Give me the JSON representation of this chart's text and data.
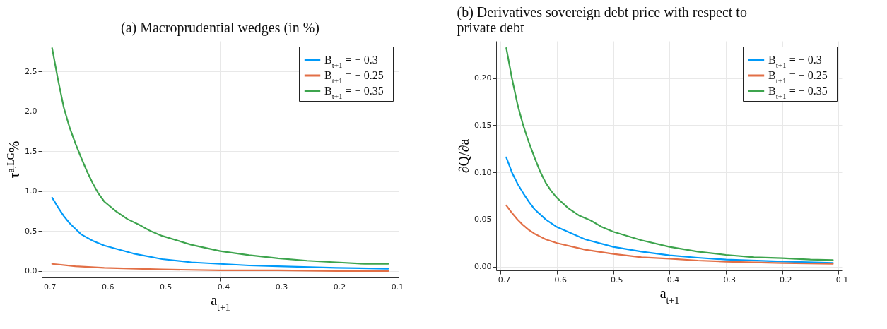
{
  "chart_data": [
    {
      "type": "line",
      "title": "(a) Macroprudential wedges (in %)",
      "xlabel": "a$_{t+1}$",
      "ylabel": "τ$^{a,LG}$%",
      "xlim": [
        -0.708,
        -0.092
      ],
      "ylim": [
        -0.08,
        2.88
      ],
      "xticks": [
        {
          "value": -0.7,
          "label": "−0.7"
        },
        {
          "value": -0.6,
          "label": "−0.6"
        },
        {
          "value": -0.5,
          "label": "−0.5"
        },
        {
          "value": -0.4,
          "label": "−0.4"
        },
        {
          "value": -0.3,
          "label": "−0.3"
        },
        {
          "value": -0.2,
          "label": "−0.2"
        },
        {
          "value": -0.1,
          "label": "−0.1"
        }
      ],
      "yticks": [
        {
          "value": 0,
          "label": "0.0"
        },
        0.5,
        {
          "value": 1,
          "label": "1.0"
        },
        1.5,
        {
          "value": 2,
          "label": "2.0"
        },
        2.5
      ],
      "grid": true,
      "legend": "top right",
      "line_style": "solid",
      "series": [
        {
          "name": "B$_{t+1}$ = − 0.3",
          "color": "#009af9",
          "x": [
            -0.69,
            -0.68,
            -0.67,
            -0.66,
            -0.65,
            -0.64,
            -0.62,
            -0.6,
            -0.55,
            -0.5,
            -0.45,
            -0.4,
            -0.35,
            -0.3,
            -0.2,
            -0.11
          ],
          "values": [
            0.92,
            0.8,
            0.69,
            0.6,
            0.53,
            0.46,
            0.38,
            0.32,
            0.22,
            0.15,
            0.11,
            0.09,
            0.07,
            0.06,
            0.04,
            0.03
          ]
        },
        {
          "name": "B$_{t+1}$ = − 0.25",
          "color": "#e26f46",
          "x": [
            -0.69,
            -0.65,
            -0.6,
            -0.5,
            -0.4,
            -0.3,
            -0.2,
            -0.11
          ],
          "values": [
            0.09,
            0.06,
            0.04,
            0.02,
            0.01,
            0.01,
            0,
            0
          ]
        },
        {
          "name": "B$_{t+1}$ = − 0.35",
          "color": "#3da44d",
          "x": [
            -0.69,
            -0.68,
            -0.67,
            -0.66,
            -0.65,
            -0.64,
            -0.63,
            -0.62,
            -0.61,
            -0.6,
            -0.58,
            -0.56,
            -0.54,
            -0.52,
            -0.5,
            -0.45,
            -0.4,
            -0.35,
            -0.3,
            -0.25,
            -0.2,
            -0.15,
            -0.11
          ],
          "values": [
            2.79,
            2.4,
            2.05,
            1.8,
            1.6,
            1.42,
            1.25,
            1.1,
            0.97,
            0.87,
            0.75,
            0.65,
            0.58,
            0.5,
            0.44,
            0.33,
            0.25,
            0.2,
            0.16,
            0.13,
            0.11,
            0.09,
            0.09
          ]
        }
      ]
    },
    {
      "type": "line",
      "title": "(b) Derivatives sovereign debt price with respect to private debt",
      "xlabel": "a$_{t+1}$",
      "ylabel": "∂Q/∂a",
      "xlim": [
        -0.708,
        -0.093
      ],
      "ylim": [
        -0.004,
        0.2395
      ],
      "xticks": [
        {
          "value": -0.7,
          "label": "−0.7"
        },
        {
          "value": -0.6,
          "label": "−0.6"
        },
        {
          "value": -0.5,
          "label": "−0.5"
        },
        {
          "value": -0.4,
          "label": "−0.4"
        },
        {
          "value": -0.3,
          "label": "−0.3"
        },
        {
          "value": -0.2,
          "label": "−0.2"
        },
        {
          "value": -0.1,
          "label": "−0.1"
        }
      ],
      "yticks": [
        {
          "value": 0,
          "label": "0.00"
        },
        0.05,
        {
          "value": 0.1,
          "label": "0.10"
        },
        0.15,
        {
          "value": 0.2,
          "label": "0.20"
        }
      ],
      "grid": true,
      "legend": "top right",
      "line_style": "solid",
      "series": [
        {
          "name": "B$_{t+1}$ = − 0.3",
          "color": "#009af9",
          "x": [
            -0.69,
            -0.68,
            -0.67,
            -0.66,
            -0.65,
            -0.64,
            -0.62,
            -0.6,
            -0.55,
            -0.5,
            -0.45,
            -0.4,
            -0.35,
            -0.3,
            -0.2,
            -0.11
          ],
          "values": [
            0.116,
            0.1,
            0.088,
            0.078,
            0.069,
            0.061,
            0.05,
            0.042,
            0.029,
            0.021,
            0.016,
            0.012,
            0.0095,
            0.0075,
            0.0055,
            0.004
          ]
        },
        {
          "name": "B$_{t+1}$ = − 0.25",
          "color": "#e26f46",
          "x": [
            -0.69,
            -0.68,
            -0.67,
            -0.66,
            -0.65,
            -0.64,
            -0.62,
            -0.6,
            -0.55,
            -0.5,
            -0.45,
            -0.4,
            -0.35,
            -0.3,
            -0.2,
            -0.11
          ],
          "values": [
            0.065,
            0.057,
            0.05,
            0.044,
            0.039,
            0.035,
            0.029,
            0.025,
            0.018,
            0.0135,
            0.01,
            0.0085,
            0.0065,
            0.0053,
            0.0038,
            0.003
          ]
        },
        {
          "name": "B$_{t+1}$ = − 0.35",
          "color": "#3da44d",
          "x": [
            -0.69,
            -0.68,
            -0.67,
            -0.66,
            -0.65,
            -0.64,
            -0.63,
            -0.62,
            -0.61,
            -0.6,
            -0.58,
            -0.56,
            -0.54,
            -0.52,
            -0.5,
            -0.45,
            -0.4,
            -0.35,
            -0.3,
            -0.25,
            -0.2,
            -0.15,
            -0.11
          ],
          "values": [
            0.232,
            0.2,
            0.172,
            0.15,
            0.132,
            0.116,
            0.101,
            0.089,
            0.08,
            0.073,
            0.062,
            0.054,
            0.049,
            0.042,
            0.037,
            0.028,
            0.021,
            0.016,
            0.0125,
            0.01,
            0.009,
            0.0075,
            0.007
          ]
        }
      ]
    }
  ]
}
